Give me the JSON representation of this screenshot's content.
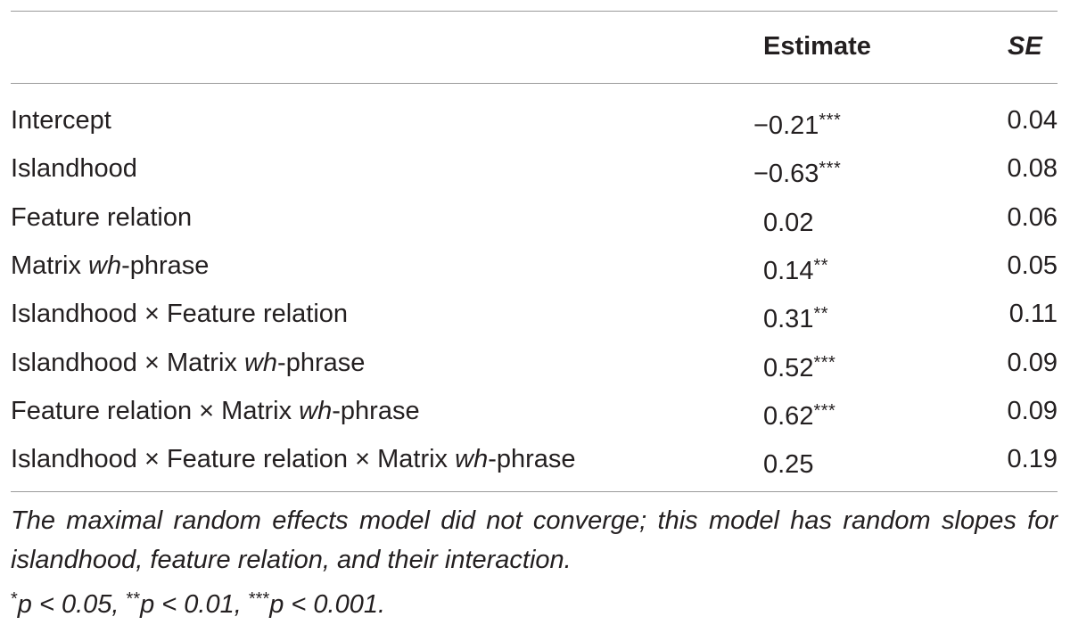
{
  "table": {
    "headers": {
      "estimate": "Estimate",
      "se": "SE"
    },
    "rows": [
      {
        "label_pre": "Intercept",
        "label_italic": "",
        "label_post": "",
        "estimate": "−0.21",
        "stars": "***",
        "se": "0.04"
      },
      {
        "label_pre": "Islandhood",
        "label_italic": "",
        "label_post": "",
        "estimate": "−0.63",
        "stars": "***",
        "se": "0.08"
      },
      {
        "label_pre": "Feature relation",
        "label_italic": "",
        "label_post": "",
        "estimate": "0.02",
        "stars": "",
        "se": "0.06"
      },
      {
        "label_pre": "Matrix ",
        "label_italic": "wh",
        "label_post": "-phrase",
        "estimate": "0.14",
        "stars": "**",
        "se": "0.05"
      },
      {
        "label_pre": "Islandhood × Feature relation",
        "label_italic": "",
        "label_post": "",
        "estimate": "0.31",
        "stars": "**",
        "se": "0.11"
      },
      {
        "label_pre": "Islandhood × Matrix ",
        "label_italic": "wh",
        "label_post": "-phrase",
        "estimate": "0.52",
        "stars": "***",
        "se": "0.09"
      },
      {
        "label_pre": "Feature relation × Matrix ",
        "label_italic": "wh",
        "label_post": "-phrase",
        "estimate": "0.62",
        "stars": "***",
        "se": "0.09"
      },
      {
        "label_pre": "Islandhood × Feature relation × Matrix ",
        "label_italic": "wh",
        "label_post": "-phrase",
        "estimate": "0.25",
        "stars": "",
        "se": "0.19"
      }
    ]
  },
  "notes": {
    "model_note": "The maximal random effects model did not converge; this model has random slopes for islandhood, feature relation, and their interaction.",
    "significance": [
      {
        "stars": "*",
        "text": "p < 0.05, "
      },
      {
        "stars": "**",
        "text": "p < 0.01, "
      },
      {
        "stars": "***",
        "text": "p < 0.001."
      }
    ]
  }
}
